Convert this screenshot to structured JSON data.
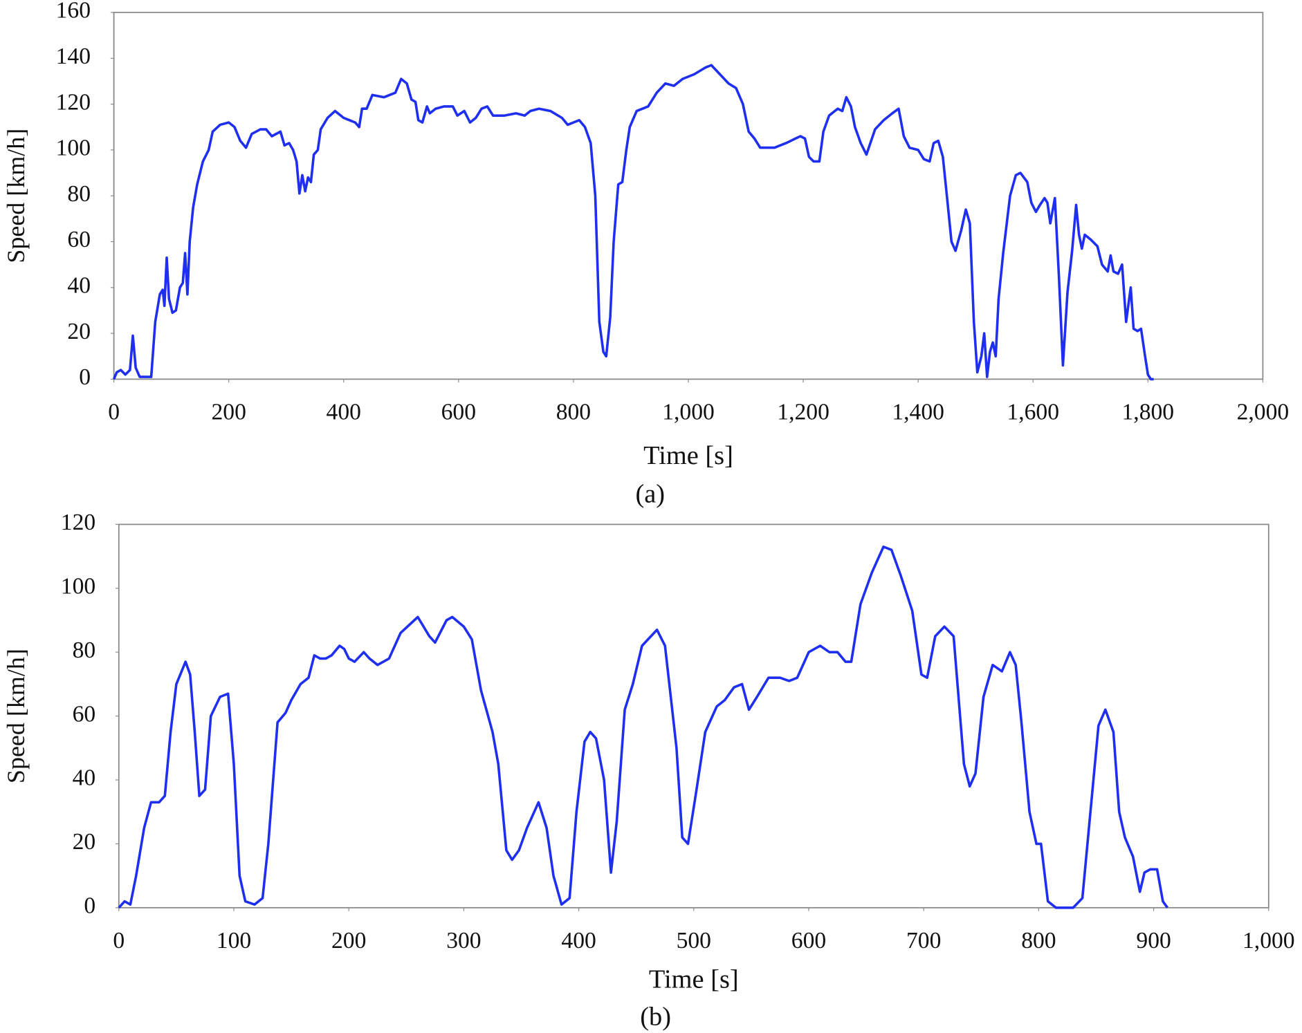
{
  "chart_data": [
    {
      "type": "line",
      "caption": "(a)",
      "x_label": "Time [s]",
      "y_label": "Speed [km/h]",
      "color": "#1f2ff0",
      "xlim": [
        0,
        2000
      ],
      "xticks": [
        0,
        200,
        400,
        600,
        800,
        {
          "value": 1000,
          "label": "1,000"
        },
        {
          "value": 1200,
          "label": "1,200"
        },
        {
          "value": 1400,
          "label": "1,400"
        },
        {
          "value": 1600,
          "label": "1,600"
        },
        {
          "value": 1800,
          "label": "1,800"
        },
        {
          "value": 2000,
          "label": "2,000"
        }
      ],
      "ylim": [
        0,
        160
      ],
      "yticks": [
        0,
        20,
        40,
        60,
        80,
        100,
        120,
        140,
        160
      ],
      "x": [
        0,
        5,
        12,
        20,
        28,
        33,
        38,
        45,
        60,
        65,
        72,
        80,
        85,
        88,
        92,
        96,
        102,
        108,
        115,
        120,
        124,
        128,
        132,
        138,
        145,
        155,
        165,
        172,
        185,
        200,
        210,
        220,
        230,
        240,
        255,
        265,
        275,
        290,
        297,
        305,
        312,
        318,
        323,
        328,
        333,
        338,
        343,
        348,
        355,
        360,
        372,
        385,
        400,
        420,
        427,
        432,
        440,
        450,
        470,
        490,
        500,
        510,
        518,
        525,
        530,
        537,
        545,
        550,
        560,
        575,
        590,
        598,
        610,
        620,
        630,
        640,
        650,
        660,
        680,
        700,
        715,
        725,
        740,
        760,
        780,
        790,
        800,
        810,
        820,
        830,
        838,
        845,
        852,
        857,
        864,
        870,
        878,
        885,
        892,
        898,
        910,
        930,
        945,
        960,
        975,
        990,
        1010,
        1030,
        1040,
        1055,
        1070,
        1083,
        1095,
        1105,
        1115,
        1125,
        1150,
        1170,
        1195,
        1203,
        1210,
        1218,
        1228,
        1235,
        1245,
        1260,
        1268,
        1275,
        1283,
        1290,
        1300,
        1310,
        1325,
        1340,
        1355,
        1366,
        1375,
        1385,
        1400,
        1410,
        1420,
        1427,
        1435,
        1443,
        1450,
        1458,
        1465,
        1475,
        1483,
        1490,
        1497,
        1503,
        1510,
        1515,
        1520,
        1525,
        1530,
        1535,
        1540,
        1548,
        1560,
        1570,
        1578,
        1590,
        1597,
        1605,
        1612,
        1620,
        1625,
        1630,
        1638,
        1645,
        1652,
        1660,
        1668,
        1675,
        1680,
        1685,
        1690,
        1700,
        1712,
        1720,
        1730,
        1735,
        1740,
        1748,
        1755,
        1762,
        1770,
        1775,
        1782,
        1788,
        1795,
        1800,
        1805,
        1810
      ],
      "values": [
        0,
        3,
        4,
        2,
        4,
        19,
        5,
        1,
        1,
        1,
        25,
        37,
        39,
        32,
        53,
        35,
        29,
        30,
        40,
        42,
        55,
        37,
        60,
        75,
        85,
        95,
        100,
        108,
        111,
        112,
        110,
        104,
        101,
        107,
        109,
        109,
        106,
        108,
        102,
        103,
        100,
        95,
        81,
        89,
        82,
        88,
        86,
        98,
        100,
        109,
        114,
        117,
        114,
        112,
        110,
        118,
        118,
        124,
        123,
        125,
        131,
        129,
        122,
        121,
        113,
        112,
        119,
        116,
        118,
        119,
        119,
        115,
        117,
        112,
        114,
        118,
        119,
        115,
        115,
        116,
        115,
        117,
        118,
        117,
        114,
        111,
        112,
        113,
        110,
        103,
        80,
        25,
        12,
        10,
        27,
        60,
        85,
        86,
        100,
        110,
        117,
        119,
        125,
        129,
        128,
        131,
        133,
        136,
        137,
        133,
        129,
        127,
        120,
        108,
        105,
        101,
        101,
        103,
        106,
        105,
        97,
        95,
        95,
        108,
        115,
        118,
        117,
        123,
        119,
        110,
        103,
        98,
        109,
        113,
        116,
        118,
        106,
        101,
        100,
        96,
        95,
        103,
        104,
        97,
        80,
        60,
        56,
        65,
        74,
        68,
        25,
        3,
        10,
        20,
        1,
        12,
        16,
        10,
        35,
        55,
        80,
        89,
        90,
        86,
        77,
        73,
        76,
        79,
        77,
        68,
        79,
        45,
        6,
        38,
        56,
        76,
        63,
        57,
        63,
        61,
        58,
        50,
        47,
        54,
        47,
        46,
        50,
        25,
        40,
        22,
        21,
        22,
        10,
        2,
        0,
        0
      ]
    },
    {
      "type": "line",
      "caption": "(b)",
      "x_label": "Time [s]",
      "y_label": "Speed [km/h]",
      "color": "#1f2ff0",
      "xlim": [
        0,
        1000
      ],
      "xticks": [
        0,
        100,
        200,
        300,
        400,
        500,
        600,
        700,
        800,
        900,
        {
          "value": 1000,
          "label": "1,000"
        }
      ],
      "ylim": [
        0,
        120
      ],
      "yticks": [
        0,
        20,
        40,
        60,
        80,
        100,
        120
      ],
      "x": [
        0,
        5,
        10,
        15,
        22,
        28,
        35,
        40,
        45,
        50,
        58,
        62,
        66,
        70,
        75,
        80,
        88,
        95,
        100,
        105,
        110,
        118,
        125,
        130,
        138,
        145,
        150,
        158,
        165,
        170,
        175,
        180,
        185,
        192,
        196,
        200,
        205,
        213,
        218,
        225,
        235,
        245,
        260,
        270,
        275,
        285,
        290,
        300,
        307,
        315,
        325,
        330,
        337,
        342,
        348,
        355,
        365,
        372,
        378,
        385,
        392,
        398,
        405,
        410,
        415,
        422,
        428,
        433,
        440,
        447,
        455,
        468,
        475,
        485,
        490,
        495,
        502,
        510,
        520,
        527,
        535,
        542,
        548,
        555,
        565,
        575,
        583,
        590,
        600,
        610,
        618,
        625,
        632,
        637,
        645,
        655,
        665,
        672,
        680,
        690,
        698,
        703,
        710,
        718,
        726,
        735,
        740,
        745,
        752,
        760,
        768,
        775,
        780,
        785,
        792,
        798,
        802,
        808,
        815,
        830,
        838,
        845,
        852,
        858,
        865,
        870,
        875,
        882,
        888,
        892,
        897,
        903,
        908,
        912
      ],
      "values": [
        0,
        2,
        1,
        10,
        25,
        33,
        33,
        35,
        55,
        70,
        77,
        73,
        55,
        35,
        37,
        60,
        66,
        67,
        45,
        10,
        2,
        1,
        3,
        20,
        58,
        61,
        65,
        70,
        72,
        79,
        78,
        78,
        79,
        82,
        81,
        78,
        77,
        80,
        78,
        76,
        78,
        86,
        91,
        85,
        83,
        90,
        91,
        88,
        84,
        68,
        55,
        45,
        18,
        15,
        18,
        25,
        33,
        25,
        10,
        1,
        3,
        30,
        52,
        55,
        53,
        40,
        11,
        27,
        62,
        70,
        82,
        87,
        82,
        50,
        22,
        20,
        36,
        55,
        63,
        65,
        69,
        70,
        62,
        66,
        72,
        72,
        71,
        72,
        80,
        82,
        80,
        80,
        77,
        77,
        95,
        105,
        113,
        112,
        104,
        93,
        73,
        72,
        85,
        88,
        85,
        45,
        38,
        42,
        66,
        76,
        74,
        80,
        76,
        58,
        30,
        20,
        20,
        2,
        0,
        0,
        3,
        30,
        57,
        62,
        55,
        30,
        22,
        16,
        5,
        11,
        12,
        12,
        2,
        0
      ]
    }
  ]
}
